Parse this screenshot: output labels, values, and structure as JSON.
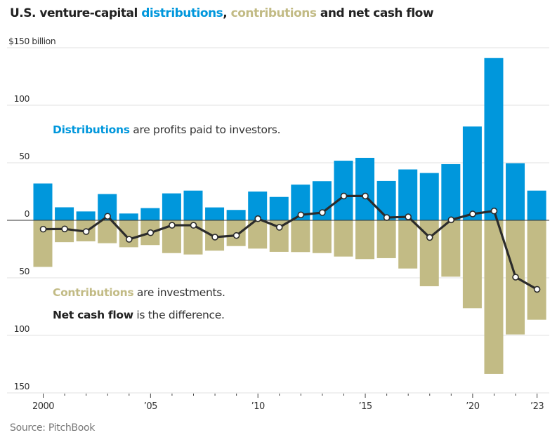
{
  "chart_data": {
    "type": "bar",
    "title": {
      "prefix": "U.S. venture-capital ",
      "distributions": "distributions",
      "sep": ", ",
      "contributions": "contributions",
      "suffix": " and net cash flow"
    },
    "ylabel": "$150 billion",
    "ylim": [
      -150,
      150
    ],
    "yticks": [
      {
        "value": 150,
        "label": "$150 billion"
      },
      {
        "value": 100,
        "label": "100"
      },
      {
        "value": 50,
        "label": "50"
      },
      {
        "value": 0,
        "label": "0"
      },
      {
        "value": -50,
        "label": "50"
      },
      {
        "value": -100,
        "label": "100"
      },
      {
        "value": -150,
        "label": "150"
      }
    ],
    "grid": true,
    "x": [
      2000,
      2001,
      2002,
      2003,
      2004,
      2005,
      2006,
      2007,
      2008,
      2009,
      2010,
      2011,
      2012,
      2013,
      2014,
      2015,
      2016,
      2017,
      2018,
      2019,
      2020,
      2021,
      2022,
      2023
    ],
    "xticks": [
      {
        "value": 2000,
        "label": "2000"
      },
      {
        "value": 2005,
        "label": "’05"
      },
      {
        "value": 2010,
        "label": "’10"
      },
      {
        "value": 2015,
        "label": "’15"
      },
      {
        "value": 2020,
        "label": "’20"
      },
      {
        "value": 2023,
        "label": "’23"
      }
    ],
    "series": [
      {
        "name": "Distributions",
        "type": "bar",
        "color": "#0097dc",
        "values": [
          32,
          11.3,
          7.7,
          22.8,
          5.9,
          10.6,
          23.4,
          25.8,
          11.2,
          9,
          25,
          20.3,
          31,
          34,
          51.8,
          54.3,
          34.2,
          44.2,
          41.1,
          48.8,
          81.5,
          141,
          49.6,
          25.8
        ]
      },
      {
        "name": "Contributions",
        "type": "bar",
        "color": "#c2bb85",
        "values": [
          -40.5,
          -19,
          -18.3,
          -19.9,
          -23.4,
          -21.5,
          -28.5,
          -29.7,
          -26.4,
          -22.4,
          -24.6,
          -27.4,
          -27.6,
          -28.5,
          -31.5,
          -33.7,
          -32.9,
          -41.9,
          -57.3,
          -49,
          -76.4,
          -133.5,
          -99.2,
          -86.4
        ]
      },
      {
        "name": "Net cash flow",
        "type": "line",
        "color": "#2b2b2b",
        "values": [
          -7.7,
          -7.5,
          -9.8,
          3.5,
          -16.5,
          -10.8,
          -4.3,
          -4.3,
          -14.6,
          -13.2,
          1.4,
          -6.1,
          4.7,
          6.7,
          21.1,
          21.1,
          2.4,
          3,
          -14.9,
          0.4,
          5.5,
          8.1,
          -49.4,
          -60
        ]
      }
    ],
    "annotations": {
      "distributions": {
        "term": "Distributions",
        "text": " are profits paid to investors."
      },
      "contributions": {
        "term": "Contributions",
        "text": " are investments."
      },
      "net": {
        "term": "Net cash flow",
        "text": " is the difference."
      }
    },
    "source": "Source: PitchBook"
  }
}
